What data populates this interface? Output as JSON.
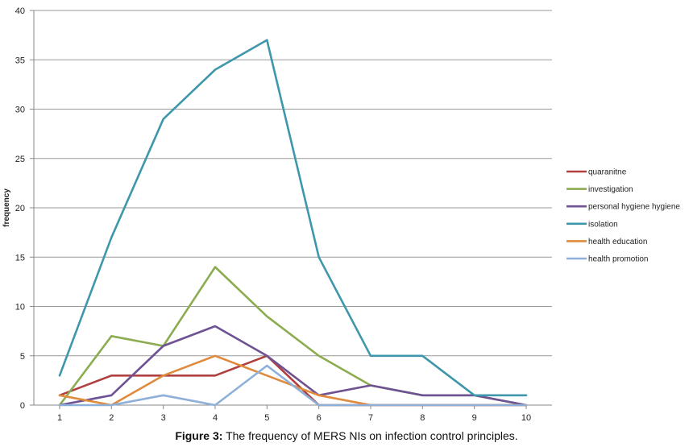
{
  "chart_data": {
    "type": "line",
    "ylabel": "frequency",
    "xlabel": "",
    "x": [
      1,
      2,
      3,
      4,
      5,
      6,
      7,
      8,
      9,
      10
    ],
    "ylim": [
      0,
      40
    ],
    "yticks": [
      0,
      5,
      10,
      15,
      20,
      25,
      30,
      35,
      40
    ],
    "grid": "horizontal",
    "legend_position": "right",
    "series": [
      {
        "name": "quaranitne",
        "color": "#b0403f",
        "values": [
          1,
          3,
          3,
          3,
          5,
          0,
          0,
          0,
          0,
          0
        ]
      },
      {
        "name": "investigation",
        "color": "#8cac50",
        "values": [
          0,
          7,
          6,
          14,
          9,
          5,
          2,
          1,
          1,
          0
        ]
      },
      {
        "name": "personal hygiene hygiene",
        "color": "#6e5294",
        "values": [
          0,
          1,
          6,
          8,
          5,
          1,
          2,
          1,
          1,
          0
        ]
      },
      {
        "name": "isolation",
        "color": "#3e97ab",
        "values": [
          3,
          17,
          29,
          34,
          37,
          15,
          5,
          5,
          1,
          1
        ]
      },
      {
        "name": "health education",
        "color": "#e08a3c",
        "values": [
          1,
          0,
          3,
          5,
          3,
          1,
          0,
          0,
          0,
          0
        ]
      },
      {
        "name": "health promotion",
        "color": "#8eb0d8",
        "values": [
          0,
          0,
          1,
          0,
          4,
          0,
          0,
          0,
          0,
          0
        ]
      }
    ]
  },
  "caption": {
    "label": "Figure 3:",
    "text": " The frequency of MERS NIs on infection control principles."
  }
}
